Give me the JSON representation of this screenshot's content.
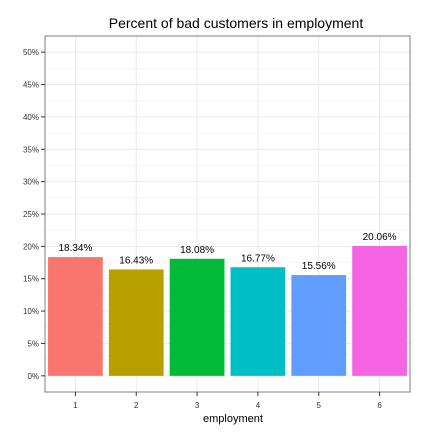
{
  "chart_data": {
    "type": "bar",
    "title": "Percent of bad customers in employment",
    "xlabel": "employment",
    "ylabel": "",
    "categories": [
      "1",
      "2",
      "3",
      "4",
      "5",
      "6"
    ],
    "values": [
      18.34,
      16.43,
      18.08,
      16.77,
      15.56,
      20.06
    ],
    "value_labels": [
      "18.34%",
      "16.43%",
      "18.08%",
      "16.77%",
      "15.56%",
      "20.06%"
    ],
    "ylim": [
      -2.5,
      52.5
    ],
    "yticks": [
      0,
      5,
      10,
      15,
      20,
      25,
      30,
      35,
      40,
      45,
      50
    ],
    "ytick_labels": [
      "0%",
      "5%",
      "10%",
      "15%",
      "20%",
      "25%",
      "30%",
      "35%",
      "40%",
      "45%",
      "50%"
    ],
    "colors": [
      "#F8766D",
      "#B79F00",
      "#00BA38",
      "#00BFC4",
      "#619CFF",
      "#F564E3"
    ],
    "grid": true,
    "panel_border": "#7f7f7f",
    "grid_color": "#ebebeb"
  }
}
